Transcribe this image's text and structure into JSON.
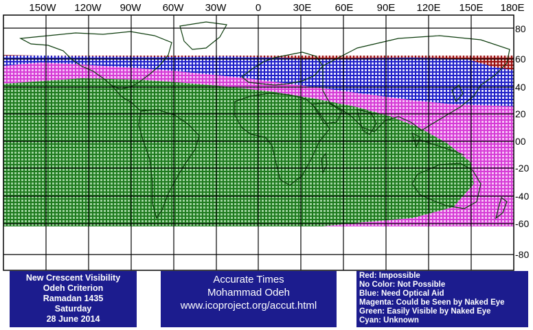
{
  "map": {
    "longitude_labels": [
      "150W",
      "120W",
      "90W",
      "60W",
      "30W",
      "0",
      "30E",
      "60E",
      "90E",
      "120E",
      "150E",
      "180E"
    ],
    "latitude_labels": [
      "80",
      "60",
      "40",
      "20",
      "00",
      "-20",
      "-40",
      "-60",
      "-80"
    ],
    "zones": [
      {
        "name": "Red",
        "color": "#9b1010"
      },
      {
        "name": "Blue",
        "color": "#2020c8"
      },
      {
        "name": "Magenta",
        "color": "#e040e0"
      },
      {
        "name": "Green",
        "color": "#1e7a1e"
      }
    ],
    "grid_color": "#000000",
    "coastline_color": "#0a3a0a"
  },
  "info_left": {
    "line1": "New Crescent Visibility",
    "line2": "Odeh Criterion",
    "line3": "Ramadan 1435",
    "line4": "Saturday",
    "line5": "28 June 2014"
  },
  "info_middle": {
    "line1": "Accurate Times",
    "line2": "Mohammad Odeh",
    "line3": "www.icoproject.org/accut.html"
  },
  "legend": {
    "red": "Red: Impossible",
    "none": "No Color: Not Possible",
    "blue": "Blue: Need Optical Aid",
    "magenta": "Magenta: Could be Seen by Naked Eye",
    "green": "Green: Easily Visible by Naked Eye",
    "cyan": "Cyan: Unknown"
  }
}
